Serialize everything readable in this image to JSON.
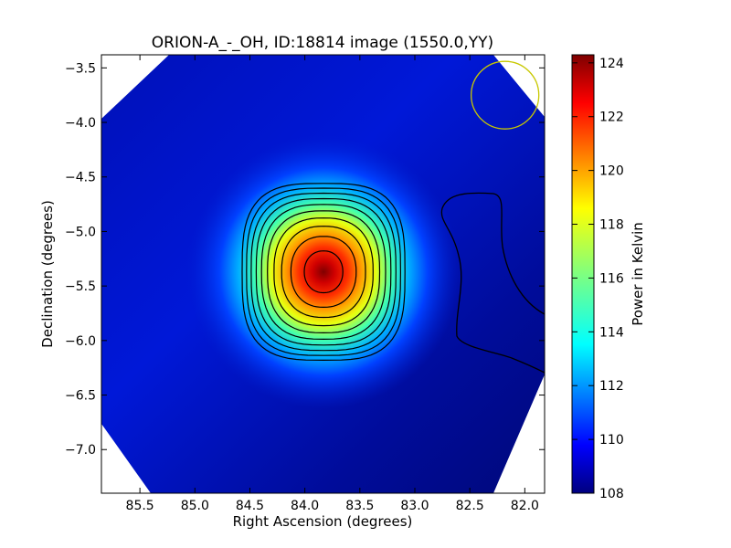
{
  "chart_data": {
    "type": "heatmap",
    "title": "ORION-A_-_OH, ID:18814 image (1550.0,YY)",
    "xlabel": "Right Ascension (degrees)",
    "ylabel": "Declination (degrees)",
    "xlim": [
      85.85,
      81.82
    ],
    "ylim": [
      -7.4,
      -3.38
    ],
    "x_ticks": [
      "85.5",
      "85.0",
      "84.5",
      "84.0",
      "83.5",
      "83.0",
      "82.5",
      "82.0"
    ],
    "x_tick_values": [
      85.5,
      85.0,
      84.5,
      84.0,
      83.5,
      83.0,
      82.5,
      82.0
    ],
    "y_ticks": [
      "-3.5",
      "-4.0",
      "-4.5",
      "-5.0",
      "-5.5",
      "-6.0",
      "-6.5",
      "-7.0"
    ],
    "y_tick_values": [
      -3.5,
      -4.0,
      -4.5,
      -5.0,
      -5.5,
      -6.0,
      -6.5,
      -7.0
    ],
    "colorbar": {
      "label": "Power in Kelvin",
      "range": [
        108,
        124.3
      ],
      "ticks": [
        "108",
        "110",
        "112",
        "114",
        "116",
        "118",
        "120",
        "122",
        "124"
      ],
      "tick_values": [
        108,
        110,
        112,
        114,
        116,
        118,
        120,
        122,
        124
      ],
      "colormap": "jet"
    },
    "source": {
      "ra": 83.83,
      "dec": -5.37,
      "peak_kelvin": 124.3,
      "background_kelvin": 108.8
    },
    "contour_levels_kelvin": [
      110,
      111.5,
      113,
      114.5,
      116,
      117.5,
      119,
      120.5,
      122,
      123.5
    ],
    "beam": {
      "ra": 82.18,
      "dec": -3.75,
      "radius_deg": 0.31,
      "color": "#c8c800"
    },
    "colors": {
      "outside_map": "#ffffff",
      "contour": "#000000"
    }
  }
}
